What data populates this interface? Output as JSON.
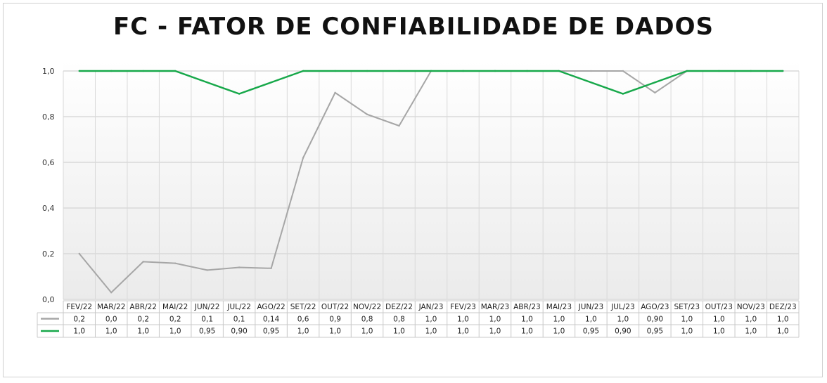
{
  "title": "FC - FATOR DE CONFIABILIDADE DE DADOS",
  "colors": {
    "series_gray": "#a6a6a6",
    "series_green": "#17a84a",
    "grid": "#d9d9d9"
  },
  "chart_data": {
    "type": "line",
    "title": "FC - FATOR DE CONFIABILIDADE DE DADOS",
    "xlabel": "",
    "ylabel": "",
    "ylim": [
      0,
      1.0
    ],
    "yticks": [
      "0,0",
      "0,2",
      "0,4",
      "0,6",
      "0,8",
      "1,0"
    ],
    "grid": true,
    "legend": "data-table-below",
    "categories": [
      "FEV/22",
      "MAR/22",
      "ABR/22",
      "MAI/22",
      "JUN/22",
      "JUL/22",
      "AGO/22",
      "SET/22",
      "OUT/22",
      "NOV/22",
      "DEZ/22",
      "JAN/23",
      "FEV/23",
      "MAR/23",
      "ABR/23",
      "MAI/23",
      "JUN/23",
      "JUL/23",
      "AGO/23",
      "SET/23",
      "OUT/23",
      "NOV/23",
      "DEZ/23"
    ],
    "series": [
      {
        "color": "#a6a6a6",
        "values": [
          0.2,
          0.03,
          0.165,
          0.158,
          0.128,
          0.14,
          0.136,
          0.62,
          0.905,
          0.81,
          0.76,
          1.0,
          1.0,
          1.0,
          1.0,
          1.0,
          1.0,
          1.0,
          0.905,
          1.0,
          1.0,
          1.0,
          1.0
        ],
        "labels": [
          "0,2",
          "0,0",
          "0,2",
          "0,2",
          "0,1",
          "0,1",
          "0,14",
          "0,6",
          "0,9",
          "0,8",
          "0,8",
          "1,0",
          "1,0",
          "1,0",
          "1,0",
          "1,0",
          "1,0",
          "1,0",
          "0,90",
          "1,0",
          "1,0",
          "1,0",
          "1,0"
        ]
      },
      {
        "color": "#17a84a",
        "values": [
          1.0,
          1.0,
          1.0,
          1.0,
          0.95,
          0.9,
          0.95,
          1.0,
          1.0,
          1.0,
          1.0,
          1.0,
          1.0,
          1.0,
          1.0,
          1.0,
          0.95,
          0.9,
          0.95,
          1.0,
          1.0,
          1.0,
          1.0
        ],
        "labels": [
          "1,0",
          "1,0",
          "1,0",
          "1,0",
          "0,95",
          "0,90",
          "0,95",
          "1,0",
          "1,0",
          "1,0",
          "1,0",
          "1,0",
          "1,0",
          "1,0",
          "1,0",
          "1,0",
          "0,95",
          "0,90",
          "0,95",
          "1,0",
          "1,0",
          "1,0",
          "1,0"
        ]
      }
    ]
  }
}
